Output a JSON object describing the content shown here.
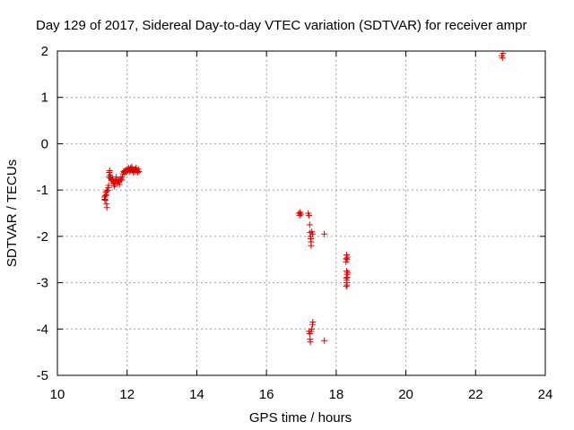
{
  "colors": {
    "background": "#ffffff",
    "axis": "#000000",
    "grid": "#a0a0a0",
    "points": "#e00000"
  },
  "chart_data": {
    "type": "scatter",
    "title": "Day 129 of 2017, Sidereal Day-to-day VTEC variation (SDTVAR) for receiver ampr",
    "xlabel": "GPS time / hours",
    "ylabel": "SDTVAR / TECUs",
    "xlim": [
      10,
      24
    ],
    "ylim": [
      -5,
      2
    ],
    "xticks": [
      10,
      12,
      14,
      16,
      18,
      20,
      22,
      24
    ],
    "yticks": [
      -5,
      -4,
      -3,
      -2,
      -1,
      0,
      1,
      2
    ],
    "xtick_labels": [
      "10",
      "12",
      "14",
      "16",
      "18",
      "20",
      "22",
      "24"
    ],
    "ytick_labels": [
      "-5",
      "-4",
      "-3",
      "-2",
      "-1",
      "0",
      "1",
      "2"
    ],
    "grid": true,
    "marker": "+",
    "series": [
      {
        "name": "SDTVAR",
        "points": [
          [
            11.35,
            -1.15
          ],
          [
            11.36,
            -1.2
          ],
          [
            11.37,
            -1.22
          ],
          [
            11.38,
            -1.12
          ],
          [
            11.39,
            -1.05
          ],
          [
            11.4,
            -1.1
          ],
          [
            11.41,
            -1.3
          ],
          [
            11.42,
            -1.38
          ],
          [
            11.42,
            -1.02
          ],
          [
            11.44,
            -1.0
          ],
          [
            11.46,
            -0.95
          ],
          [
            11.47,
            -0.9
          ],
          [
            11.48,
            -0.72
          ],
          [
            11.49,
            -0.62
          ],
          [
            11.5,
            -0.58
          ],
          [
            11.51,
            -0.68
          ],
          [
            11.52,
            -0.75
          ],
          [
            11.54,
            -0.72
          ],
          [
            11.55,
            -0.8
          ],
          [
            11.57,
            -0.78
          ],
          [
            11.59,
            -0.76
          ],
          [
            11.6,
            -0.85
          ],
          [
            11.62,
            -0.82
          ],
          [
            11.63,
            -0.92
          ],
          [
            11.65,
            -0.88
          ],
          [
            11.67,
            -0.8
          ],
          [
            11.69,
            -0.72
          ],
          [
            11.7,
            -0.78
          ],
          [
            11.72,
            -0.85
          ],
          [
            11.74,
            -0.8
          ],
          [
            11.76,
            -0.82
          ],
          [
            11.78,
            -0.88
          ],
          [
            11.8,
            -0.8
          ],
          [
            11.82,
            -0.75
          ],
          [
            11.84,
            -0.78
          ],
          [
            11.86,
            -0.72
          ],
          [
            11.88,
            -0.65
          ],
          [
            11.9,
            -0.6
          ],
          [
            11.92,
            -0.62
          ],
          [
            11.94,
            -0.58
          ],
          [
            11.96,
            -0.62
          ],
          [
            11.98,
            -0.6
          ],
          [
            12.0,
            -0.55
          ],
          [
            12.02,
            -0.58
          ],
          [
            12.04,
            -0.52
          ],
          [
            12.06,
            -0.56
          ],
          [
            12.08,
            -0.6
          ],
          [
            12.1,
            -0.52
          ],
          [
            12.12,
            -0.55
          ],
          [
            12.14,
            -0.5
          ],
          [
            12.16,
            -0.58
          ],
          [
            12.18,
            -0.62
          ],
          [
            12.2,
            -0.56
          ],
          [
            12.22,
            -0.6
          ],
          [
            12.24,
            -0.55
          ],
          [
            12.26,
            -0.52
          ],
          [
            12.28,
            -0.58
          ],
          [
            12.3,
            -0.62
          ],
          [
            12.32,
            -0.55
          ],
          [
            12.34,
            -0.6
          ],
          [
            16.93,
            -1.5
          ],
          [
            16.95,
            -1.55
          ],
          [
            16.97,
            -1.48
          ],
          [
            16.99,
            -1.52
          ],
          [
            17.2,
            -1.5
          ],
          [
            17.22,
            -1.55
          ],
          [
            17.24,
            -1.75
          ],
          [
            17.25,
            -1.92
          ],
          [
            17.26,
            -2.0
          ],
          [
            17.27,
            -2.05
          ],
          [
            17.28,
            -2.12
          ],
          [
            17.28,
            -2.2
          ],
          [
            17.3,
            -1.9
          ],
          [
            17.32,
            -1.95
          ],
          [
            17.66,
            -1.95
          ],
          [
            17.22,
            -4.05
          ],
          [
            17.24,
            -4.1
          ],
          [
            17.25,
            -4.22
          ],
          [
            17.26,
            -4.28
          ],
          [
            17.28,
            -4.05
          ],
          [
            17.3,
            -4.0
          ],
          [
            17.32,
            -3.9
          ],
          [
            17.33,
            -3.85
          ],
          [
            17.66,
            -4.25
          ],
          [
            18.28,
            -2.55
          ],
          [
            18.29,
            -2.48
          ],
          [
            18.3,
            -2.4
          ],
          [
            18.31,
            -2.5
          ],
          [
            18.32,
            -2.45
          ],
          [
            18.3,
            -2.75
          ],
          [
            18.31,
            -2.82
          ],
          [
            18.29,
            -2.9
          ],
          [
            18.3,
            -2.95
          ],
          [
            18.32,
            -2.88
          ],
          [
            18.3,
            -3.0
          ],
          [
            18.31,
            -3.05
          ],
          [
            18.29,
            -3.08
          ],
          [
            18.33,
            -2.78
          ],
          [
            22.75,
            1.9
          ],
          [
            22.77,
            1.85
          ],
          [
            22.79,
            1.95
          ]
        ]
      }
    ]
  }
}
